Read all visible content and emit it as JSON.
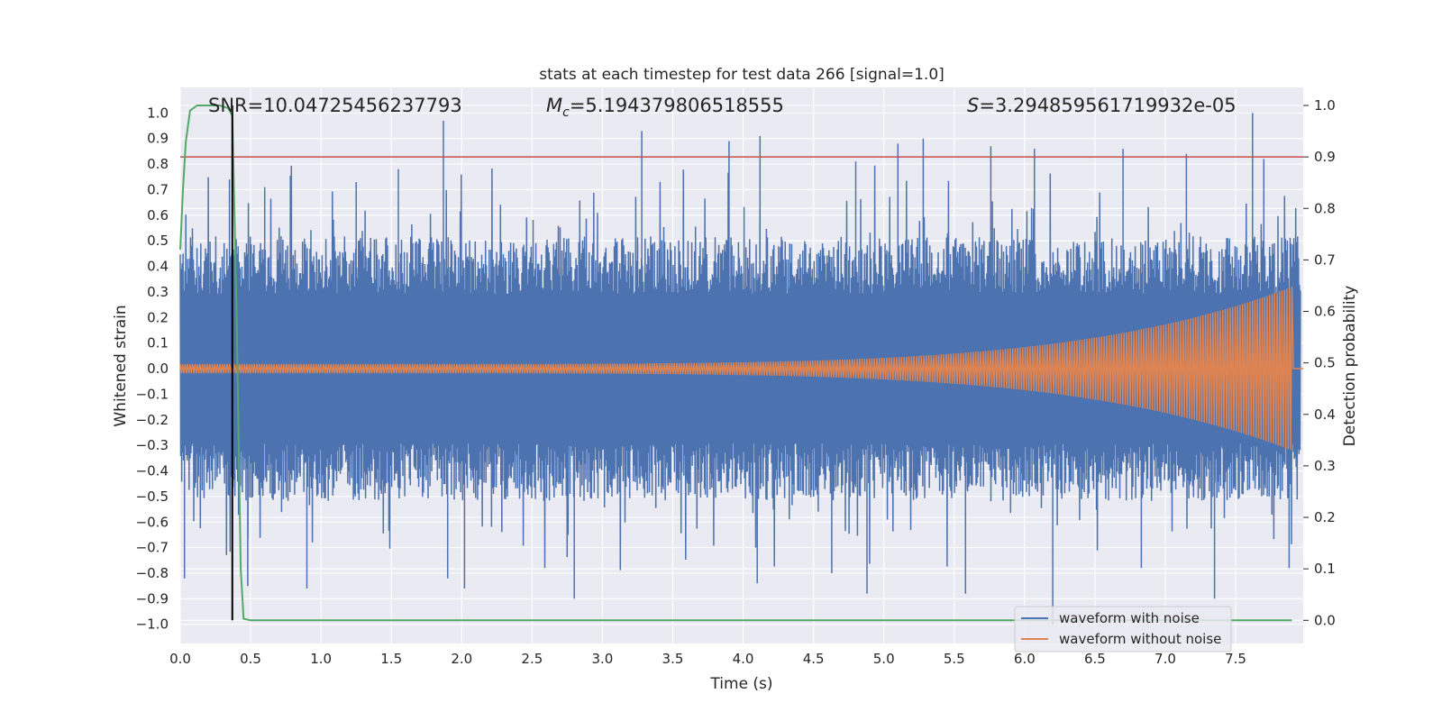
{
  "chart_data": {
    "type": "line",
    "title": "stats at each timestep for test data 266 [signal=1.0]",
    "xlabel": "Time (s)",
    "ylabel_left": "Whitened strain",
    "ylabel_right": "Detection probability",
    "xlim": [
      0.0,
      7.98
    ],
    "ylim_left": [
      -1.075,
      1.1
    ],
    "ylim_right": [
      -0.045,
      1.035
    ],
    "x_ticks": [
      0.0,
      0.5,
      1.0,
      1.5,
      2.0,
      2.5,
      3.0,
      3.5,
      4.0,
      4.5,
      5.0,
      5.5,
      6.0,
      6.5,
      7.0,
      7.5
    ],
    "x_tick_labels": [
      "0.0",
      "0.5",
      "1.0",
      "1.5",
      "2.0",
      "2.5",
      "3.0",
      "3.5",
      "4.0",
      "4.5",
      "5.0",
      "5.5",
      "6.0",
      "6.5",
      "7.0",
      "7.5"
    ],
    "y_left_ticks": [
      1.0,
      0.9,
      0.8,
      0.7,
      0.6,
      0.5,
      0.4,
      0.3,
      0.2,
      0.1,
      0.0,
      -0.1,
      -0.2,
      -0.3,
      -0.4,
      -0.5,
      -0.6,
      -0.7,
      -0.8,
      -0.9,
      -1.0
    ],
    "y_left_tick_labels": [
      "1.0",
      "0.9",
      "0.8",
      "0.7",
      "0.6",
      "0.5",
      "0.4",
      "0.3",
      "0.2",
      "0.1",
      "0.0",
      "−0.1",
      "−0.2",
      "−0.3",
      "−0.4",
      "−0.5",
      "−0.6",
      "−0.7",
      "−0.8",
      "−0.9",
      "−1.0"
    ],
    "y_right_ticks": [
      1.0,
      0.9,
      0.8,
      0.7,
      0.6,
      0.5,
      0.4,
      0.3,
      0.2,
      0.1,
      0.0
    ],
    "y_right_tick_labels": [
      "1.0",
      "0.9",
      "0.8",
      "0.7",
      "0.6",
      "0.5",
      "0.4",
      "0.3",
      "0.2",
      "0.1",
      "0.0"
    ],
    "grid": true,
    "colors": {
      "background": "#eaeaf2",
      "grid": "#ffffff",
      "noise": "#4c72b0",
      "clean": "#dd8452",
      "probability": "#55a868",
      "threshold": "#c44e52",
      "marker": "#000000"
    },
    "annotations": {
      "snr": "SNR=10.04725456237793",
      "mc_prefix": "M",
      "mc_sub": "c",
      "mc_value": "=5.194379806518555",
      "s_prefix": "S",
      "s_value": "=3.294859561719932e-05"
    },
    "threshold_probability": 0.9,
    "marker_time": 0.37,
    "series": [
      {
        "name": "waveform with noise",
        "axis": "left",
        "description": "whitened noisy strain, |amplitude| mostly 0.4-0.6, peaks near +1.0 and -1.0",
        "typical_amplitude": 0.45,
        "spikes": [
          {
            "t": 0.03,
            "v": -0.82
          },
          {
            "t": 0.35,
            "v": 0.74
          },
          {
            "t": 0.48,
            "v": -0.85
          },
          {
            "t": 0.6,
            "v": 0.71
          },
          {
            "t": 0.9,
            "v": -0.86
          },
          {
            "t": 1.25,
            "v": 0.73
          },
          {
            "t": 1.55,
            "v": 0.78
          },
          {
            "t": 1.87,
            "v": 0.97
          },
          {
            "t": 1.9,
            "v": -0.82
          },
          {
            "t": 2.02,
            "v": -0.86
          },
          {
            "t": 2.8,
            "v": -0.9
          },
          {
            "t": 3.28,
            "v": 0.93
          },
          {
            "t": 3.9,
            "v": 0.89
          },
          {
            "t": 4.12,
            "v": 0.91
          },
          {
            "t": 4.1,
            "v": -0.84
          },
          {
            "t": 4.63,
            "v": -0.8
          },
          {
            "t": 4.8,
            "v": 0.81
          },
          {
            "t": 4.88,
            "v": -0.88
          },
          {
            "t": 5.1,
            "v": 0.88
          },
          {
            "t": 5.28,
            "v": 0.9
          },
          {
            "t": 5.58,
            "v": -0.88
          },
          {
            "t": 5.76,
            "v": 0.87
          },
          {
            "t": 6.07,
            "v": 0.86
          },
          {
            "t": 6.2,
            "v": -1.0
          },
          {
            "t": 6.7,
            "v": 0.86
          },
          {
            "t": 6.83,
            "v": -0.78
          },
          {
            "t": 7.15,
            "v": 0.84
          },
          {
            "t": 7.35,
            "v": -0.9
          },
          {
            "t": 7.62,
            "v": 1.0
          },
          {
            "t": 7.7,
            "v": 0.82
          },
          {
            "t": 7.88,
            "v": -0.78
          }
        ]
      },
      {
        "name": "waveform without noise",
        "axis": "left",
        "description": "clean chirp, amplitude grows from ~0.02 to peak 0.32 at merger",
        "merger_time": 7.9,
        "amplitude_start": 0.018,
        "amplitude_peak": 0.32,
        "end_time": 7.98
      },
      {
        "name": "detection probability",
        "axis": "right",
        "x": [
          0.0,
          0.02,
          0.04,
          0.07,
          0.12,
          0.2,
          0.28,
          0.34,
          0.37,
          0.4,
          0.43,
          0.45,
          0.5,
          1.0,
          2.0,
          3.0,
          4.0,
          5.0,
          6.0,
          7.0,
          7.9
        ],
        "y": [
          0.72,
          0.84,
          0.93,
          0.99,
          1.0,
          1.0,
          1.0,
          0.995,
          0.98,
          0.6,
          0.1,
          0.003,
          0.0,
          0.0,
          0.0,
          0.0,
          0.0,
          0.0,
          0.0,
          0.0,
          0.0
        ]
      }
    ],
    "legend": {
      "location": "lower-right",
      "entries": [
        {
          "label": "waveform with noise",
          "color": "#4c72b0"
        },
        {
          "label": "waveform without noise",
          "color": "#dd8452"
        }
      ]
    }
  }
}
